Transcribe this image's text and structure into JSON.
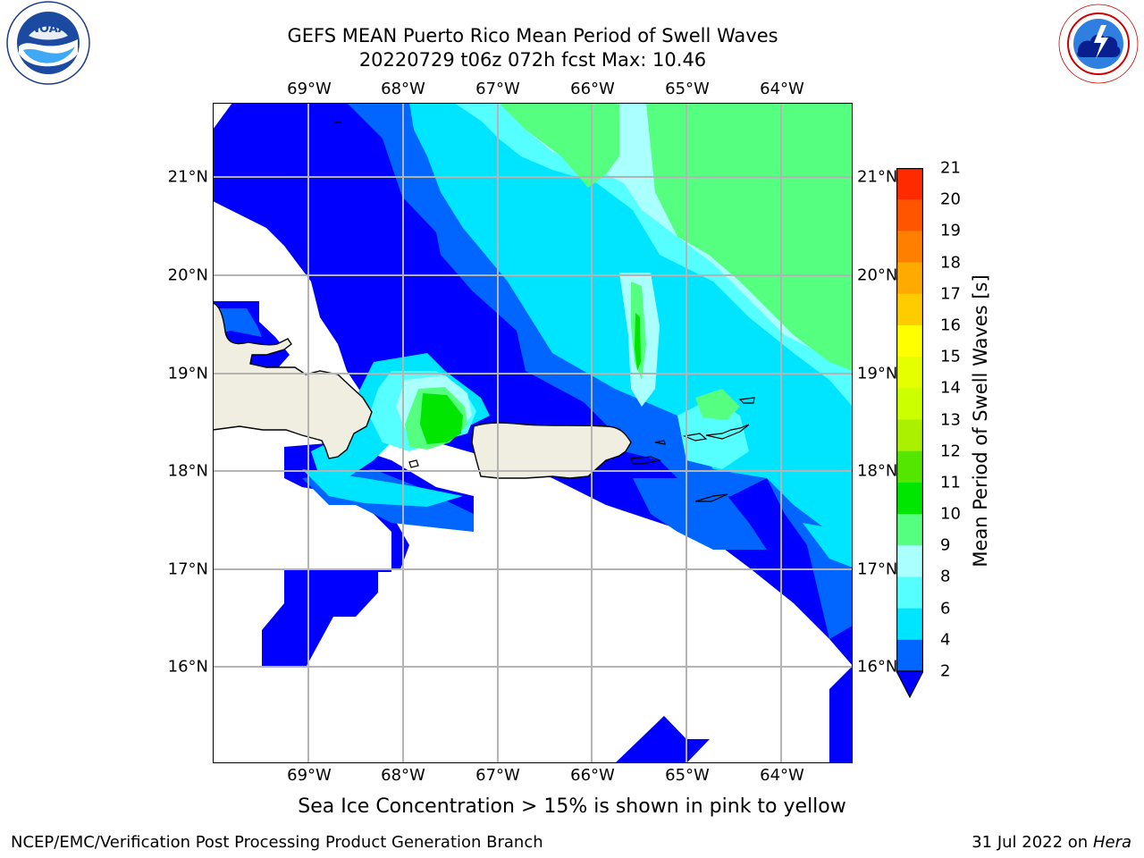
{
  "title": {
    "line1": "GEFS MEAN Puerto Rico Mean Period of Swell Waves",
    "line2": "20220729 t06z 072h fcst   Max: 10.46"
  },
  "longitude_labels": [
    "69°W",
    "68°W",
    "67°W",
    "66°W",
    "65°W",
    "64°W"
  ],
  "latitude_labels": [
    "21°N",
    "20°N",
    "19°N",
    "18°N",
    "17°N",
    "16°N"
  ],
  "map": {
    "region": "Puerto Rico",
    "variable": "Mean Period of Swell Waves",
    "extent_lon": [
      -70.0,
      -63.25
    ],
    "extent_lat": [
      15.0,
      21.75
    ],
    "max_value": 10.46,
    "land_color": "#efeee0",
    "coastline_color": "#000000",
    "grid_color": "#b4b4b4"
  },
  "colorbar": {
    "label": "Mean Period of Swell Waves [s]",
    "ticks": [
      "21",
      "20",
      "19",
      "18",
      "17",
      "16",
      "15",
      "14",
      "13",
      "12",
      "11",
      "10",
      "9",
      "8",
      "6",
      "4",
      "2"
    ],
    "bands": [
      {
        "range": "<2",
        "color": "#0000ff"
      },
      {
        "range": "2-4",
        "color": "#0066ff"
      },
      {
        "range": "4-6",
        "color": "#00e5ff"
      },
      {
        "range": "6-8",
        "color": "#55ffff"
      },
      {
        "range": "8-9",
        "color": "#aaffff"
      },
      {
        "range": "9-10",
        "color": "#55ff80"
      },
      {
        "range": "10-11",
        "color": "#00e600"
      },
      {
        "range": "11-12",
        "color": "#55e600"
      },
      {
        "range": "12-13",
        "color": "#aaf000"
      },
      {
        "range": "13-14",
        "color": "#ccff00"
      },
      {
        "range": "14-15",
        "color": "#e6ff00"
      },
      {
        "range": "15-16",
        "color": "#ffff00"
      },
      {
        "range": "16-17",
        "color": "#ffcc00"
      },
      {
        "range": "17-18",
        "color": "#ffaa00"
      },
      {
        "range": "18-19",
        "color": "#ff8000"
      },
      {
        "range": "19-20",
        "color": "#ff5500"
      },
      {
        "range": "20-21",
        "color": "#ff2a00"
      }
    ]
  },
  "note": "Sea Ice Concentration > 15% is shown in pink to yellow",
  "footer": {
    "left": "NCEP/EMC/Verification Post Processing Product Generation Branch",
    "right_date": "31 Jul 2022 on ",
    "right_host": "Hera"
  },
  "logos": {
    "left": "NOAA",
    "left_ring_text": "NATIONAL OCEANIC AND ATMOSPHERIC ADMINISTRATION · U.S. DEPARTMENT OF COMMERCE",
    "right_ring_text": "NATIONAL WEATHER SERVICE"
  }
}
